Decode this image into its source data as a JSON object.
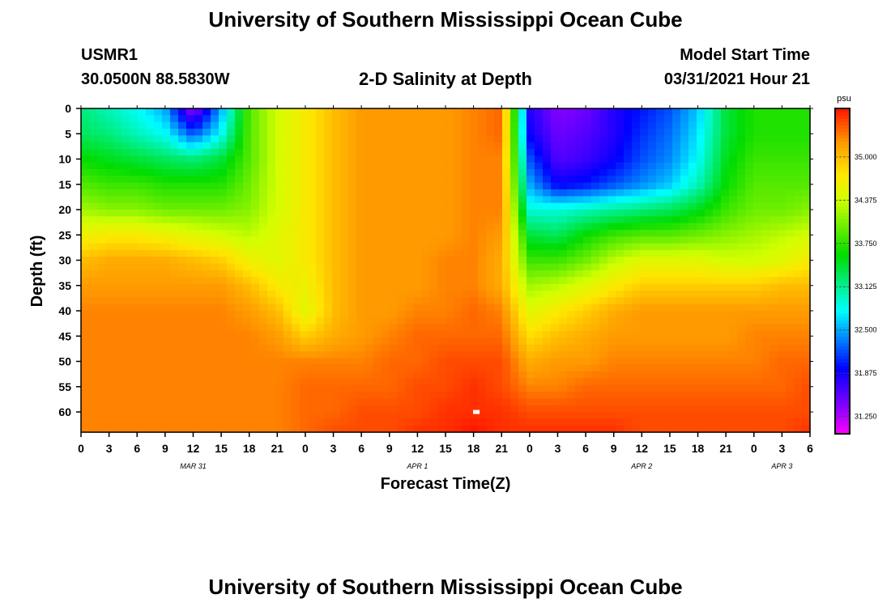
{
  "header": {
    "title": "University of Southern Mississippi Ocean Cube",
    "station": "USMR1",
    "coords": "30.0500N  88.5830W",
    "plot_title": "2-D Salinity at Depth",
    "model_start_label": "Model Start Time",
    "model_start_value": "03/31/2021 Hour 21"
  },
  "footer": {
    "title": "University of Southern Mississippi Ocean Cube"
  },
  "chart_data": {
    "type": "heatmap",
    "title": "2-D Salinity at Depth",
    "xlabel": "Forecast Time(Z)",
    "ylabel": "Depth (ft)",
    "units": "psu",
    "x_tick_labels": [
      "0",
      "3",
      "6",
      "9",
      "12",
      "15",
      "18",
      "21",
      "0",
      "3",
      "6",
      "9",
      "12",
      "15",
      "18",
      "21",
      "0",
      "3",
      "6",
      "9",
      "12",
      "15",
      "18",
      "21",
      "0",
      "3",
      "6"
    ],
    "x_range_hours": [
      0,
      78
    ],
    "date_labels": [
      {
        "text": "MAR 31",
        "hour": 12
      },
      {
        "text": "APR 1",
        "hour": 36
      },
      {
        "text": "APR 2",
        "hour": 60
      },
      {
        "text": "APR 3",
        "hour": 75
      }
    ],
    "y_ticks": [
      0,
      5,
      10,
      15,
      20,
      25,
      30,
      35,
      40,
      45,
      50,
      55,
      60
    ],
    "y_range": [
      0,
      64
    ],
    "colorbar": {
      "ticks": [
        "35.000",
        "34.375",
        "33.750",
        "33.125",
        "32.500",
        "31.875",
        "31.250"
      ],
      "range": [
        31.0,
        35.7
      ]
    },
    "depths": [
      0,
      5,
      10,
      15,
      20,
      25,
      30,
      35,
      40,
      45,
      50,
      55,
      60,
      64
    ],
    "times": [
      0,
      3,
      6,
      9,
      12,
      15,
      18,
      21,
      24,
      27,
      30,
      33,
      36,
      39,
      42,
      45,
      48,
      51,
      54,
      57,
      60,
      63,
      66,
      69,
      72,
      75,
      78
    ],
    "salinity": [
      [
        33.2,
        33.0,
        32.8,
        32.5,
        31.3,
        32.5,
        33.9,
        34.4,
        34.7,
        35.0,
        35.2,
        35.2,
        35.2,
        35.2,
        35.3,
        35.4,
        31.8,
        31.4,
        31.5,
        31.8,
        32.0,
        32.2,
        32.6,
        33.4,
        33.7,
        33.7,
        33.7
      ],
      [
        33.3,
        33.2,
        33.0,
        32.8,
        32.2,
        32.8,
        33.9,
        34.4,
        34.7,
        35.0,
        35.2,
        35.2,
        35.2,
        35.2,
        35.3,
        35.4,
        31.9,
        31.5,
        31.6,
        31.8,
        32.1,
        32.3,
        32.7,
        33.4,
        33.7,
        33.7,
        33.7
      ],
      [
        33.6,
        33.5,
        33.4,
        33.3,
        33.2,
        33.4,
        33.9,
        34.4,
        34.7,
        35.0,
        35.2,
        35.2,
        35.2,
        35.2,
        35.3,
        35.3,
        32.2,
        31.6,
        31.7,
        31.9,
        32.2,
        32.4,
        32.8,
        33.5,
        33.8,
        33.8,
        33.8
      ],
      [
        33.9,
        33.8,
        33.8,
        33.7,
        33.7,
        33.7,
        34.0,
        34.4,
        34.7,
        35.0,
        35.2,
        35.2,
        35.2,
        35.2,
        35.3,
        35.3,
        32.5,
        31.9,
        32.0,
        32.2,
        32.4,
        32.6,
        33.0,
        33.6,
        33.9,
        33.9,
        33.9
      ],
      [
        34.2,
        34.1,
        34.1,
        34.0,
        34.0,
        34.0,
        34.1,
        34.4,
        34.7,
        35.0,
        35.2,
        35.2,
        35.2,
        35.2,
        35.3,
        35.3,
        32.9,
        32.9,
        33.0,
        33.1,
        33.2,
        33.3,
        33.5,
        33.8,
        34.0,
        34.0,
        34.1
      ],
      [
        34.6,
        34.7,
        34.7,
        34.6,
        34.5,
        34.4,
        34.3,
        34.5,
        34.7,
        35.0,
        35.2,
        35.2,
        35.2,
        35.2,
        35.3,
        35.2,
        33.4,
        33.3,
        33.6,
        33.8,
        33.9,
        33.9,
        34.0,
        34.1,
        34.2,
        34.3,
        34.4
      ],
      [
        35.0,
        35.1,
        35.1,
        35.1,
        35.0,
        34.9,
        34.6,
        34.5,
        34.7,
        35.0,
        35.2,
        35.2,
        35.2,
        35.3,
        35.3,
        35.1,
        33.8,
        33.8,
        34.0,
        34.3,
        34.5,
        34.5,
        34.5,
        34.4,
        34.4,
        34.5,
        34.7
      ],
      [
        35.2,
        35.2,
        35.2,
        35.2,
        35.2,
        35.2,
        35.0,
        34.7,
        34.6,
        35.0,
        35.2,
        35.2,
        35.2,
        35.3,
        35.3,
        35.1,
        34.2,
        34.3,
        34.5,
        34.7,
        34.9,
        34.9,
        34.9,
        34.9,
        34.9,
        35.0,
        35.0
      ],
      [
        35.3,
        35.3,
        35.3,
        35.3,
        35.3,
        35.3,
        35.2,
        35.0,
        34.5,
        35.0,
        35.2,
        35.2,
        35.3,
        35.3,
        35.4,
        35.3,
        34.5,
        34.7,
        34.9,
        35.1,
        35.2,
        35.2,
        35.2,
        35.2,
        35.2,
        35.2,
        35.2
      ],
      [
        35.3,
        35.3,
        35.3,
        35.3,
        35.3,
        35.3,
        35.3,
        35.2,
        34.9,
        35.1,
        35.2,
        35.3,
        35.4,
        35.4,
        35.4,
        35.4,
        34.8,
        35.0,
        35.1,
        35.2,
        35.2,
        35.2,
        35.2,
        35.2,
        35.3,
        35.3,
        35.3
      ],
      [
        35.3,
        35.3,
        35.3,
        35.3,
        35.3,
        35.3,
        35.3,
        35.3,
        35.3,
        35.3,
        35.3,
        35.4,
        35.4,
        35.5,
        35.5,
        35.5,
        35.1,
        35.2,
        35.2,
        35.3,
        35.3,
        35.3,
        35.3,
        35.3,
        35.3,
        35.4,
        35.4
      ],
      [
        35.3,
        35.3,
        35.3,
        35.3,
        35.3,
        35.3,
        35.3,
        35.3,
        35.4,
        35.4,
        35.4,
        35.4,
        35.5,
        35.5,
        35.6,
        35.5,
        35.3,
        35.3,
        35.4,
        35.4,
        35.4,
        35.4,
        35.4,
        35.4,
        35.4,
        35.4,
        35.5
      ],
      [
        35.3,
        35.3,
        35.3,
        35.3,
        35.3,
        35.3,
        35.3,
        35.3,
        35.4,
        35.4,
        35.5,
        35.5,
        35.5,
        35.6,
        35.6,
        35.6,
        35.5,
        35.5,
        35.5,
        35.5,
        35.5,
        35.5,
        35.5,
        35.5,
        35.5,
        35.5,
        35.5
      ],
      [
        35.3,
        35.3,
        35.3,
        35.3,
        35.3,
        35.3,
        35.3,
        35.3,
        35.4,
        35.5,
        35.5,
        35.5,
        35.6,
        35.6,
        35.7,
        35.6,
        35.6,
        35.6,
        35.6,
        35.6,
        35.5,
        35.5,
        35.5,
        35.5,
        35.5,
        35.5,
        35.6
      ]
    ]
  }
}
